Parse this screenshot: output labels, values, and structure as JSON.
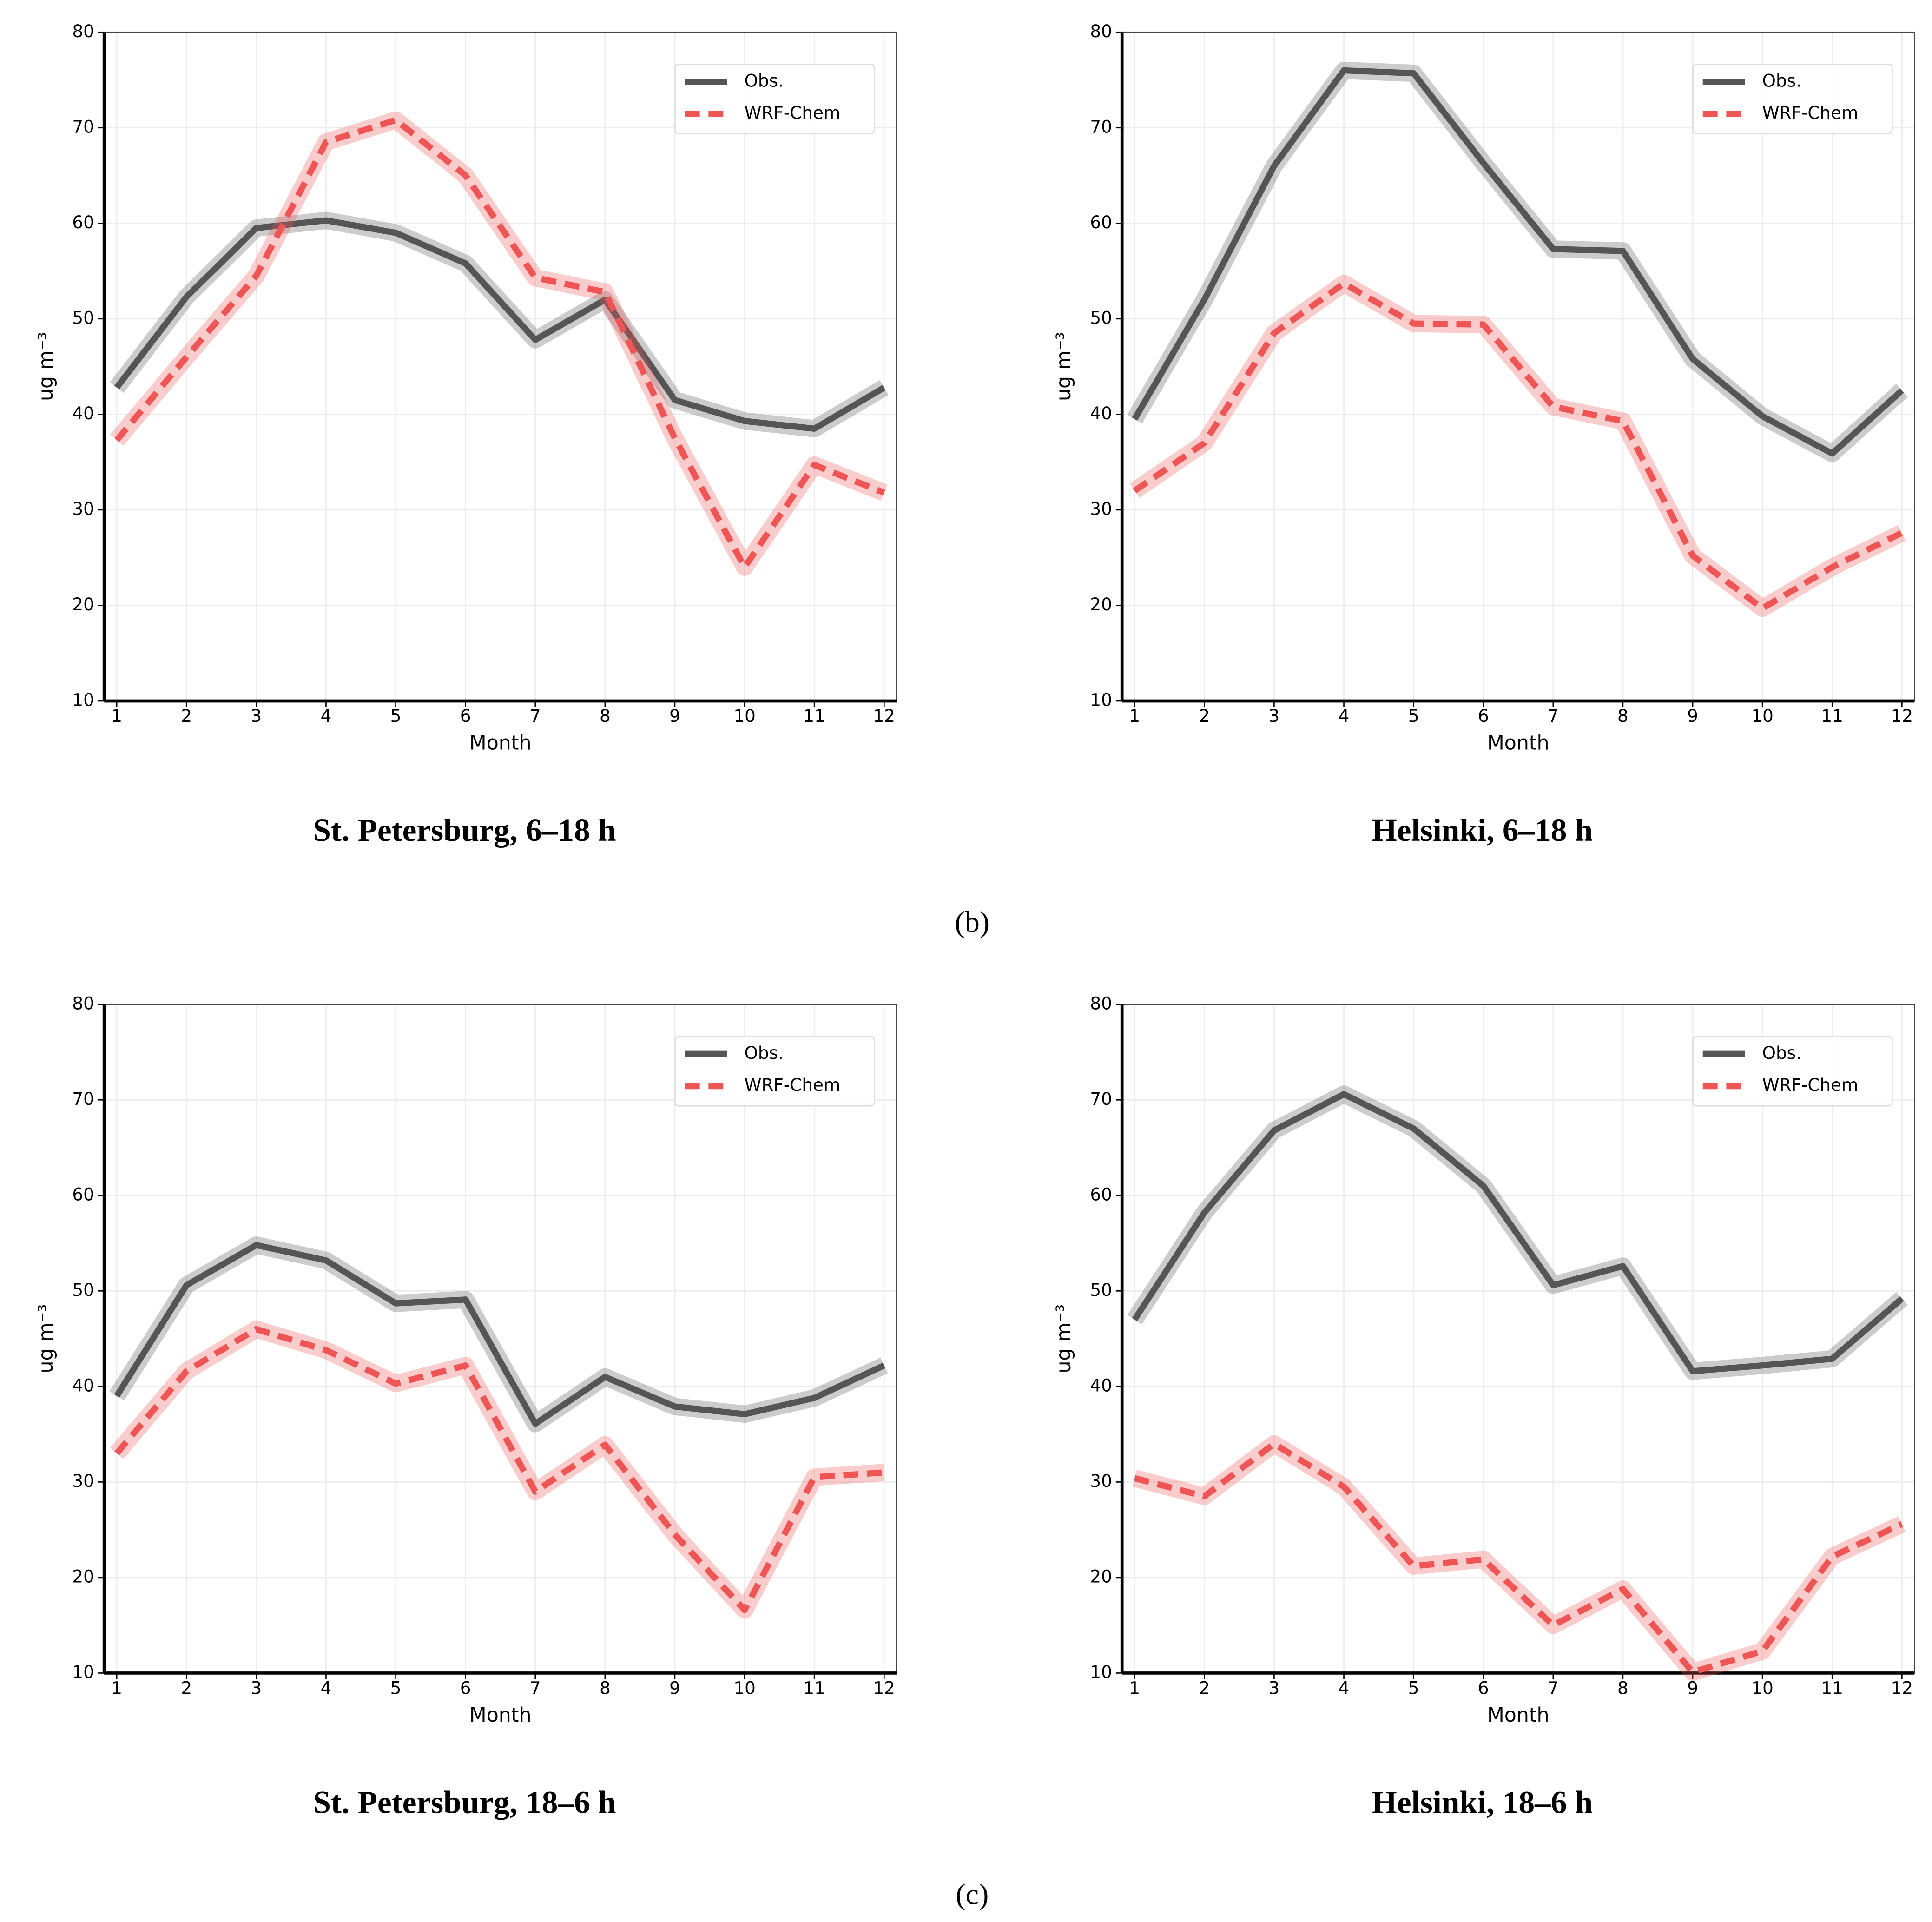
{
  "chart_data": [
    {
      "type": "line",
      "title": "St. Petersburg, 6–18 h",
      "xlabel": "Month",
      "ylabel": "ug m⁻³",
      "x": [
        1,
        2,
        3,
        4,
        5,
        6,
        7,
        8,
        9,
        10,
        11,
        12
      ],
      "xlim": [
        0.82,
        12.18
      ],
      "xticks": [
        1,
        2,
        3,
        4,
        5,
        6,
        7,
        8,
        9,
        10,
        11,
        12
      ],
      "ylim": [
        10,
        80
      ],
      "yticks": [
        10,
        20,
        30,
        40,
        50,
        60,
        70,
        80
      ],
      "grid": true,
      "legend": "upper right",
      "series": [
        {
          "name": "Obs.",
          "color": "#555555",
          "style": "solid",
          "values": [
            42.8,
            52.3,
            59.5,
            60.3,
            59,
            55.8,
            47.8,
            52,
            41.5,
            39.3,
            38.5,
            42.8
          ]
        },
        {
          "name": "WRF-Chem",
          "color": "#f05555",
          "style": "dashed",
          "values": [
            37.3,
            46,
            54.5,
            68.5,
            70.8,
            65,
            54.3,
            52.8,
            37.5,
            24,
            34.7,
            31.8
          ]
        }
      ]
    },
    {
      "type": "line",
      "title": "Helsinki, 6–18 h",
      "xlabel": "Month",
      "ylabel": "ug m⁻³",
      "x": [
        1,
        2,
        3,
        4,
        5,
        6,
        7,
        8,
        9,
        10,
        11,
        12
      ],
      "xlim": [
        0.82,
        12.18
      ],
      "xticks": [
        1,
        2,
        3,
        4,
        5,
        6,
        7,
        8,
        9,
        10,
        11,
        12
      ],
      "ylim": [
        10,
        80
      ],
      "yticks": [
        10,
        20,
        30,
        40,
        50,
        60,
        70,
        80
      ],
      "grid": true,
      "legend": "upper right",
      "series": [
        {
          "name": "Obs.",
          "color": "#555555",
          "style": "solid",
          "values": [
            39.5,
            52,
            66,
            76,
            75.7,
            66.3,
            57.3,
            57.1,
            45.8,
            39.8,
            35.9,
            42.5
          ]
        },
        {
          "name": "WRF-Chem",
          "color": "#f05555",
          "style": "dashed",
          "values": [
            32,
            37,
            48.5,
            53.7,
            49.5,
            49.4,
            40.8,
            39.3,
            25.2,
            19.7,
            24,
            27.6
          ]
        }
      ]
    },
    {
      "type": "line",
      "title": "St. Petersburg, 18–6 h",
      "xlabel": "Month",
      "ylabel": "ug m⁻³",
      "x": [
        1,
        2,
        3,
        4,
        5,
        6,
        7,
        8,
        9,
        10,
        11,
        12
      ],
      "xlim": [
        0.82,
        12.18
      ],
      "xticks": [
        1,
        2,
        3,
        4,
        5,
        6,
        7,
        8,
        9,
        10,
        11,
        12
      ],
      "ylim": [
        10,
        80
      ],
      "yticks": [
        10,
        20,
        30,
        40,
        50,
        60,
        70,
        80
      ],
      "grid": true,
      "legend": "upper right",
      "series": [
        {
          "name": "Obs.",
          "color": "#555555",
          "style": "solid",
          "values": [
            39,
            50.6,
            54.8,
            53.2,
            48.7,
            49.1,
            36.1,
            41,
            37.9,
            37.1,
            38.8,
            42.2
          ]
        },
        {
          "name": "WRF-Chem",
          "color": "#f05555",
          "style": "dashed",
          "values": [
            33,
            41.6,
            46,
            43.8,
            40.3,
            42.2,
            29,
            33.9,
            24.5,
            16.6,
            30.5,
            31
          ]
        }
      ]
    },
    {
      "type": "line",
      "title": "Helsinki, 18–6 h",
      "xlabel": "Month",
      "ylabel": "ug m⁻³",
      "x": [
        1,
        2,
        3,
        4,
        5,
        6,
        7,
        8,
        9,
        10,
        11,
        12
      ],
      "xlim": [
        0.82,
        12.18
      ],
      "xticks": [
        1,
        2,
        3,
        4,
        5,
        6,
        7,
        8,
        9,
        10,
        11,
        12
      ],
      "ylim": [
        10,
        80
      ],
      "yticks": [
        10,
        20,
        30,
        40,
        50,
        60,
        70,
        80
      ],
      "grid": true,
      "legend": "upper right",
      "series": [
        {
          "name": "Obs.",
          "color": "#555555",
          "style": "solid",
          "values": [
            47,
            58.2,
            66.8,
            70.6,
            67,
            61,
            50.6,
            52.6,
            41.6,
            42.2,
            42.9,
            49.2
          ]
        },
        {
          "name": "WRF-Chem",
          "color": "#f05555",
          "style": "dashed",
          "values": [
            30.4,
            28.5,
            34,
            29.5,
            21.2,
            21.9,
            15,
            18.8,
            10.1,
            12.3,
            22.2,
            25.6
          ]
        }
      ]
    }
  ],
  "panel_labels": [
    "(b)",
    "(c)"
  ]
}
